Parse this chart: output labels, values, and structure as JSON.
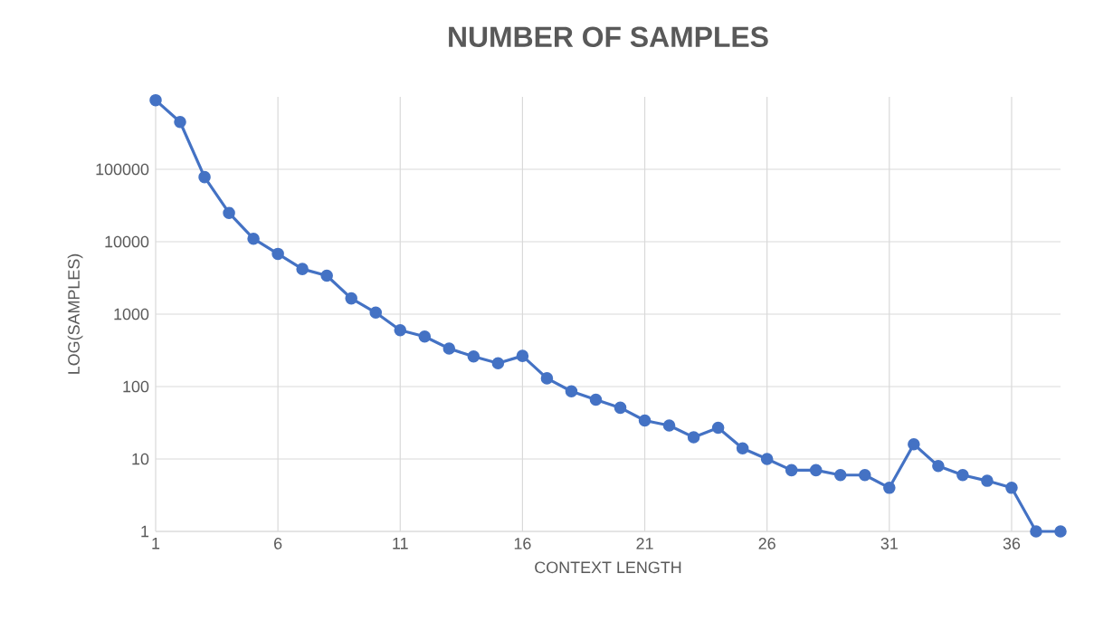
{
  "chart_data": {
    "type": "line",
    "title": "NUMBER OF SAMPLES",
    "xlabel": "CONTEXT LENGTH",
    "ylabel": "LOG(SAMPLES)",
    "x": [
      1,
      2,
      3,
      4,
      5,
      6,
      7,
      8,
      9,
      10,
      11,
      12,
      13,
      14,
      15,
      16,
      17,
      18,
      19,
      20,
      21,
      22,
      23,
      24,
      25,
      26,
      27,
      28,
      29,
      30,
      31,
      32,
      33,
      34,
      35,
      36,
      37,
      38
    ],
    "series": [
      {
        "color": "#4472c4",
        "values": [
          900000,
          450000,
          78000,
          25000,
          11000,
          6800,
          4200,
          3400,
          1650,
          1050,
          600,
          490,
          335,
          260,
          210,
          265,
          130,
          86,
          66,
          51,
          34,
          29,
          20,
          27,
          14,
          10,
          7,
          7,
          6,
          6,
          4,
          16,
          8,
          6,
          5,
          4,
          1,
          1
        ]
      }
    ],
    "xlim": [
      1,
      38
    ],
    "xticks": [
      1,
      6,
      11,
      16,
      21,
      26,
      31,
      36
    ],
    "ylim": [
      1,
      1000000
    ],
    "yticks": [
      1,
      10,
      100,
      1000,
      10000,
      100000
    ],
    "log": "y",
    "grid": true,
    "marker": "circle",
    "line_style": "solid"
  }
}
